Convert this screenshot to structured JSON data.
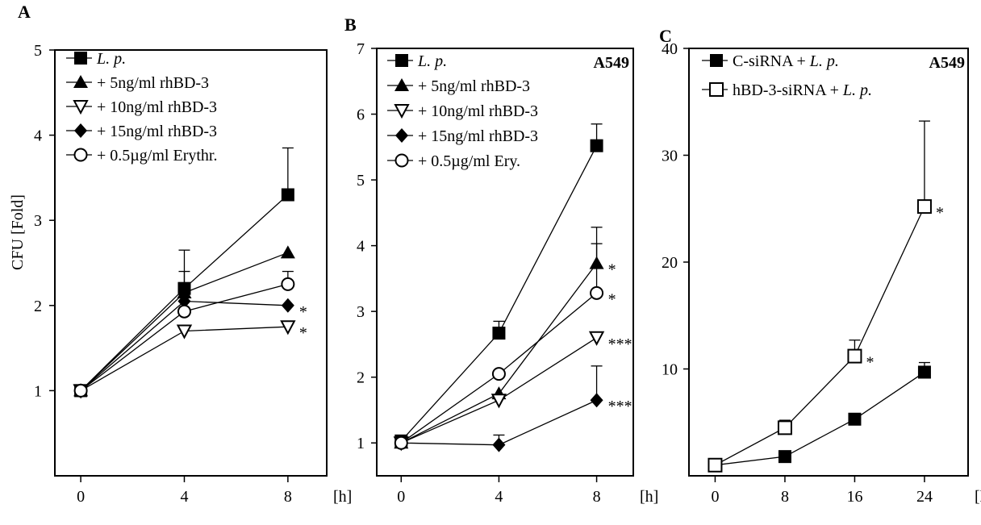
{
  "chart_data": [
    {
      "panel": "A",
      "type": "line",
      "ylabel": "CFU [Fold]",
      "xunit": "[h]",
      "x": [
        0,
        4,
        8
      ],
      "xlim": [
        -1,
        9.5
      ],
      "ylim": [
        0,
        5
      ],
      "yticks": [
        1,
        2,
        3,
        4,
        5
      ],
      "series": [
        {
          "name": "L. p.",
          "italic": true,
          "marker": "square-filled",
          "values": [
            1.0,
            2.2,
            3.3
          ],
          "err": [
            0,
            0.45,
            0.55
          ]
        },
        {
          "name": "+ 5ng/ml rhBD-3",
          "marker": "triangle-up-filled",
          "values": [
            1.0,
            2.15,
            2.62
          ],
          "err": [
            0,
            0.25,
            0
          ]
        },
        {
          "name": "+ 10ng/ml rhBD-3",
          "marker": "triangle-down-open",
          "values": [
            1.0,
            1.7,
            1.75
          ],
          "err": [
            0,
            0,
            0
          ]
        },
        {
          "name": "+ 15ng/ml rhBD-3",
          "marker": "diamond-filled",
          "values": [
            1.0,
            2.05,
            2.0
          ],
          "err": [
            0,
            0,
            0
          ]
        },
        {
          "name": "+ 0.5µg/ml Erythr.",
          "marker": "circle-open",
          "values": [
            1.0,
            1.93,
            2.25
          ],
          "err": [
            0,
            0,
            0.15
          ]
        }
      ],
      "annotations": [
        {
          "text": "*",
          "x": 8,
          "y": 2.0
        },
        {
          "text": "*",
          "x": 8,
          "y": 1.75
        }
      ]
    },
    {
      "panel": "B",
      "type": "line",
      "cell_line": "A549",
      "xunit": "[h]",
      "x": [
        0,
        4,
        8
      ],
      "xlim": [
        -1,
        9.5
      ],
      "ylim": [
        0.5,
        7
      ],
      "yticks": [
        1,
        2,
        3,
        4,
        5,
        6,
        7
      ],
      "series": [
        {
          "name": "L. p.",
          "italic": true,
          "marker": "square-filled",
          "values": [
            1.03,
            2.67,
            5.52
          ],
          "err": [
            0,
            0.18,
            0.33
          ]
        },
        {
          "name": "+ 5ng/ml rhBD-3",
          "marker": "triangle-up-filled",
          "values": [
            1.0,
            1.75,
            3.73
          ],
          "err": [
            0,
            0,
            0.55
          ]
        },
        {
          "name": "+ 10ng/ml rhBD-3",
          "marker": "triangle-down-open",
          "values": [
            1.0,
            1.65,
            2.6
          ],
          "err": [
            0,
            0,
            0
          ]
        },
        {
          "name": "+ 15ng/ml rhBD-3",
          "marker": "diamond-filled",
          "values": [
            1.0,
            0.97,
            1.65
          ],
          "err": [
            0,
            0.15,
            0.52
          ]
        },
        {
          "name": "+ 0.5µg/ml Ery.",
          "marker": "circle-open",
          "values": [
            1.0,
            2.05,
            3.28
          ],
          "err": [
            0,
            0,
            0.75
          ]
        }
      ],
      "annotations": [
        {
          "text": "*",
          "x": 8,
          "y": 3.73
        },
        {
          "text": "*",
          "x": 8,
          "y": 3.28
        },
        {
          "text": "***",
          "x": 8,
          "y": 2.6
        },
        {
          "text": "***",
          "x": 8,
          "y": 1.65
        }
      ]
    },
    {
      "panel": "C",
      "type": "line",
      "cell_line": "A549",
      "xunit": "[h]",
      "x": [
        0,
        8,
        16,
        24
      ],
      "xlim": [
        -3,
        29
      ],
      "ylim": [
        0,
        40
      ],
      "yticks": [
        10,
        20,
        30,
        40
      ],
      "series": [
        {
          "name": "C-siRNA + L. p.",
          "italic_suffix": "L. p.",
          "marker": "square-filled",
          "values": [
            1.0,
            1.8,
            5.3,
            9.7
          ],
          "err": [
            0,
            0,
            0,
            0.9
          ]
        },
        {
          "name": "hBD-3-siRNA + L. p.",
          "italic_suffix": "L. p.",
          "marker": "square-open",
          "values": [
            1.0,
            4.5,
            11.2,
            25.2
          ],
          "err": [
            0,
            0.7,
            1.5,
            8.0
          ]
        }
      ],
      "annotations": [
        {
          "text": "*",
          "x": 16,
          "y": 11.2
        },
        {
          "text": "*",
          "x": 24,
          "y": 25.2
        }
      ]
    }
  ]
}
